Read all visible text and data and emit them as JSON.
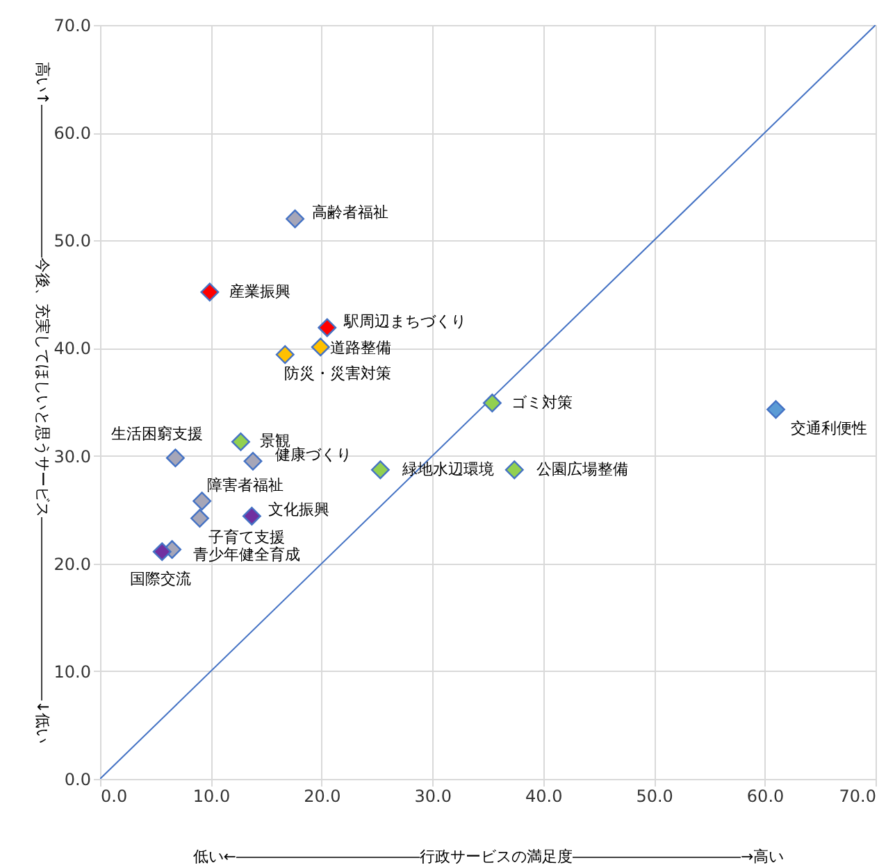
{
  "chart_data": {
    "type": "scatter",
    "xlabel": "低い←――――――――――――行政サービスの満足度―――――――――――→高い",
    "ylabel": "高い↑――――――――――今後、充実してほしいと思うサービス――――――――――――↓低い",
    "xlim": [
      0,
      70
    ],
    "ylim": [
      0,
      70
    ],
    "xticks": [
      {
        "value": 0,
        "label": "0.0"
      },
      {
        "value": 10,
        "label": "10.0"
      },
      {
        "value": 20,
        "label": "20.0"
      },
      {
        "value": 30,
        "label": "30.0"
      },
      {
        "value": 40,
        "label": "40.0"
      },
      {
        "value": 50,
        "label": "50.0"
      },
      {
        "value": 60,
        "label": "60.0"
      },
      {
        "value": 70,
        "label": "70.0"
      }
    ],
    "yticks": [
      {
        "value": 0,
        "label": "0.0"
      },
      {
        "value": 10,
        "label": "10.0"
      },
      {
        "value": 20,
        "label": "20.0"
      },
      {
        "value": 30,
        "label": "30.0"
      },
      {
        "value": 40,
        "label": "40.0"
      },
      {
        "value": 50,
        "label": "50.0"
      },
      {
        "value": 60,
        "label": "60.0"
      },
      {
        "value": 70,
        "label": "70.0"
      }
    ],
    "grid": true,
    "series": [
      {
        "type": "scatter",
        "marker": "diamond",
        "x": [
          17.6,
          9.9,
          20.5,
          19.9,
          16.7,
          6.8,
          12.7,
          13.8,
          9.2,
          9.0,
          13.7,
          6.5,
          5.6,
          25.3,
          37.4,
          35.4,
          61.0
        ],
        "values": [
          52.0,
          45.2,
          41.9,
          40.1,
          39.4,
          29.8,
          31.3,
          29.5,
          25.8,
          24.2,
          24.4,
          21.3,
          21.1,
          28.7,
          28.7,
          34.9,
          34.3
        ],
        "color": "#4472c4",
        "colors": [
          "#a6a6b8",
          "#ff0000",
          "#ff0000",
          "#ffc000",
          "#ffc000",
          "#a6a6b8",
          "#92d050",
          "#a6a6b8",
          "#a6a6b8",
          "#a6a6b8",
          "#7030a0",
          "#a6a6b8",
          "#7030a0",
          "#92d050",
          "#92d050",
          "#92d050",
          "#5b9bd5"
        ]
      },
      {
        "type": "line",
        "marker": "none",
        "line_style": "solid",
        "x": [
          0,
          70
        ],
        "values": [
          0,
          70
        ],
        "color": "#4472c4"
      }
    ],
    "annotations": [
      {
        "text": "高齢者福祉",
        "x": 17.6,
        "y": 52.0
      },
      {
        "text": "産業振興",
        "x": 9.9,
        "y": 45.2
      },
      {
        "text": "駅周辺まちづくり",
        "x": 20.5,
        "y": 41.9
      },
      {
        "text": "道路整備",
        "x": 19.9,
        "y": 40.1
      },
      {
        "text": "防災・災害対策",
        "x": 16.7,
        "y": 39.4
      },
      {
        "text": "生活困窮支援",
        "x": 6.8,
        "y": 29.8
      },
      {
        "text": "景観",
        "x": 12.7,
        "y": 31.3
      },
      {
        "text": "健康づくり",
        "x": 13.8,
        "y": 29.5
      },
      {
        "text": "障害者福祉",
        "x": 9.2,
        "y": 25.8
      },
      {
        "text": "子育て支援",
        "x": 9.0,
        "y": 24.2
      },
      {
        "text": "文化振興",
        "x": 13.7,
        "y": 24.4
      },
      {
        "text": "青少年健全育成",
        "x": 6.5,
        "y": 21.3
      },
      {
        "text": "国際交流",
        "x": 5.6,
        "y": 21.1
      },
      {
        "text": "緑地水辺環境",
        "x": 25.3,
        "y": 28.7
      },
      {
        "text": "公園広場整備",
        "x": 37.4,
        "y": 28.7
      },
      {
        "text": "ゴミ対策",
        "x": 35.4,
        "y": 34.9
      },
      {
        "text": "交通利便性",
        "x": 61.0,
        "y": 34.3
      }
    ]
  }
}
